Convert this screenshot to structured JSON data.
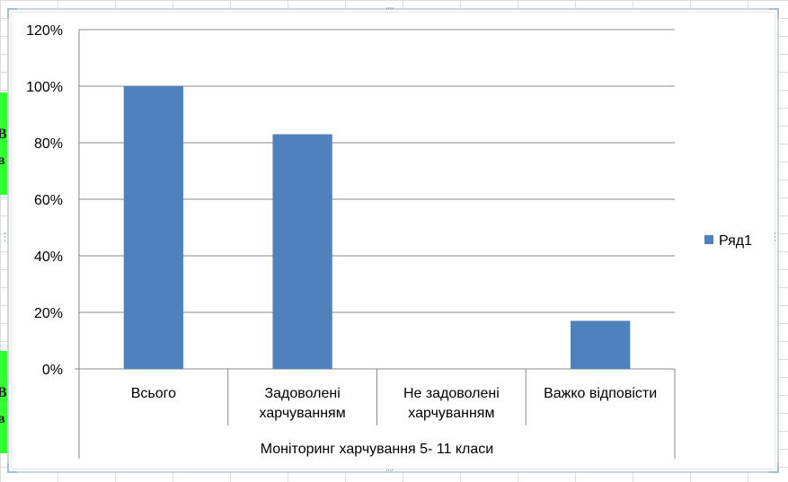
{
  "chart_data": {
    "type": "bar",
    "title": "",
    "categories": [
      [
        "Всього"
      ],
      [
        "Задоволені",
        "харчуванням"
      ],
      [
        "Не задоволені",
        "харчуванням"
      ],
      [
        "Важко відповісти"
      ]
    ],
    "series": [
      {
        "name": "Ряд1",
        "values": [
          100,
          83,
          0,
          17
        ],
        "color": "#4f81bd"
      }
    ],
    "xlabel": "Моніторинг харчування 5- 11 класи",
    "ylabel": "",
    "ylim": [
      0,
      120
    ],
    "ytick_labels": [
      "0%",
      "20%",
      "40%",
      "60%",
      "80%",
      "100%",
      "120%"
    ],
    "grid": true,
    "legend_position": "right"
  },
  "sheet": {
    "cell_letters": [
      "В",
      "в",
      "В",
      "в"
    ],
    "fill_color": "#33ff33"
  }
}
